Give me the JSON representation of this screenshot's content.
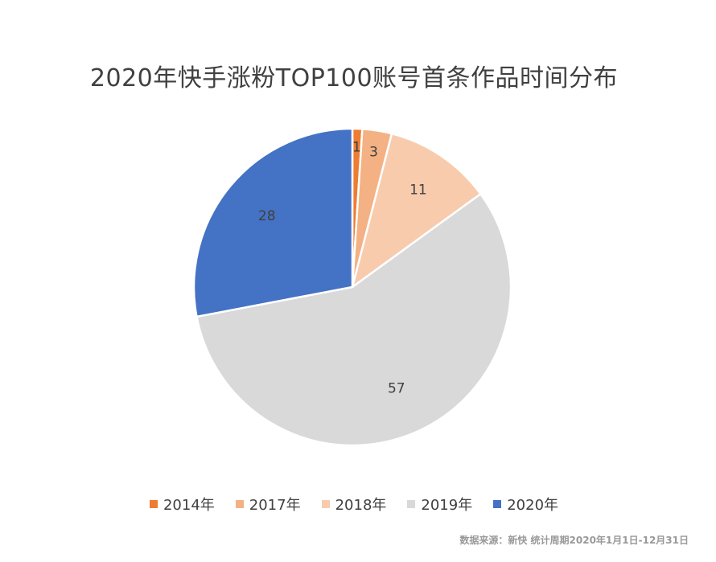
{
  "chart_data": {
    "type": "pie",
    "title": "2020年快手涨粉TOP100账号首条作品时间分布",
    "categories": [
      "2014年",
      "2017年",
      "2018年",
      "2019年",
      "2020年"
    ],
    "values": [
      1,
      3,
      11,
      57,
      28
    ],
    "colors": [
      "#ED7D31",
      "#F4B183",
      "#F8CBAD",
      "#D9D9D9",
      "#4472C4"
    ],
    "data_labels": [
      "1",
      "3",
      "11",
      "57",
      "28"
    ],
    "legend_position": "bottom"
  },
  "footnote": "数据来源：新快   统计周期2020年1月1日-12月31日"
}
